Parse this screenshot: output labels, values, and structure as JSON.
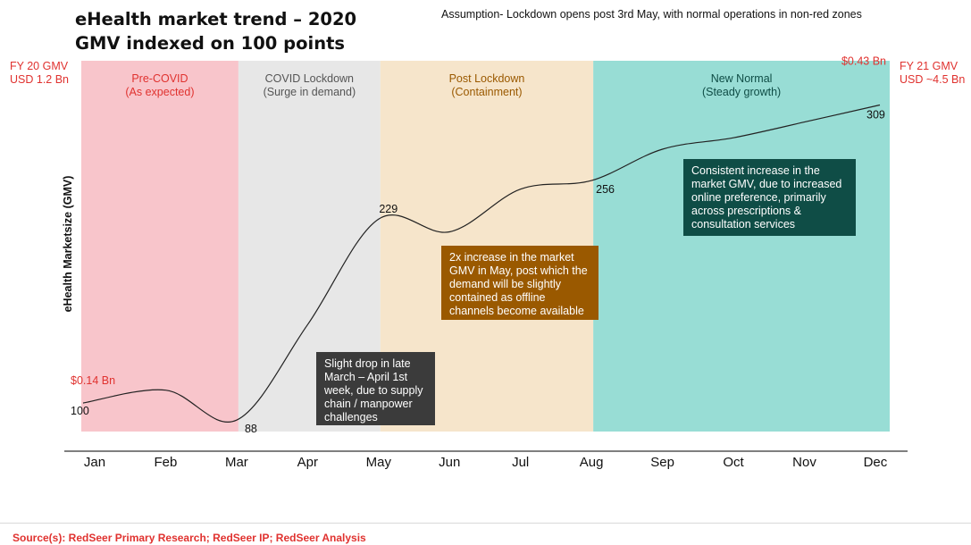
{
  "title_line1": "eHealth market trend – 2020",
  "title_line2": "GMV indexed on 100 points",
  "assumption": "Assumption- Lockdown opens post 3rd May, with normal operations in non-red zones",
  "fy20_line1": "FY 20 GMV",
  "fy20_line2": "USD 1.2 Bn",
  "fy21_line1": "FY 21 GMV",
  "fy21_line2": "USD ~4.5 Bn",
  "source": "Source(s): RedSeer Primary Research; RedSeer IP; RedSeer Analysis",
  "colors": {
    "pre_covid": "#f8c5cb",
    "lockdown": "#e7e7e7",
    "post_lockdown": "#f6e5cb",
    "new_normal": "#98ddd5",
    "red_text": "#e0322f",
    "brown_text": "#9a5900",
    "teal_text": "#0f4d46",
    "gray_text": "#555555"
  },
  "chart_data": {
    "type": "line",
    "title": "eHealth market trend – 2020",
    "subtitle": "GMV indexed on 100 points",
    "ylabel": "eHealth Marketsize (GMV)",
    "xlabel": "",
    "categories": [
      "Jan",
      "Feb",
      "Mar",
      "Apr",
      "May",
      "Jun",
      "Jul",
      "Aug",
      "Sep",
      "Oct",
      "Nov",
      "Dec"
    ],
    "ylim": [
      80,
      340
    ],
    "series": [
      {
        "values": [
          100,
          109,
          88,
          155,
          229,
          220,
          250,
          256,
          278,
          286,
          297,
          309
        ]
      }
    ],
    "point_labels": [
      {
        "category": "Jan",
        "value": 100,
        "text": "100"
      },
      {
        "category": "Mar",
        "value": 88,
        "text": "88"
      },
      {
        "category": "May",
        "value": 229,
        "text": "229"
      },
      {
        "category": "Aug",
        "value": 256,
        "text": "256"
      },
      {
        "category": "Dec",
        "value": 309,
        "text": "309"
      }
    ],
    "value_annotations": [
      {
        "category": "Jan",
        "text": "$0.14 Bn"
      },
      {
        "category": "Dec",
        "text": "$0.43 Bn"
      }
    ],
    "phases": [
      {
        "key": "pre_covid",
        "title": "Pre-COVID",
        "sub": "(As expected)",
        "start": "Jan",
        "end": "Mar"
      },
      {
        "key": "lockdown",
        "title": "COVID Lockdown",
        "sub": "(Surge in demand)",
        "start": "Mar",
        "end": "May"
      },
      {
        "key": "post_lockdown",
        "title": "Post Lockdown",
        "sub": "(Containment)",
        "start": "May",
        "end": "Aug"
      },
      {
        "key": "new_normal",
        "title": "New Normal",
        "sub": "(Steady growth)",
        "start": "Aug",
        "end": "Dec"
      }
    ],
    "notes": [
      "Slight drop in late March – April 1st week, due to supply chain / manpower challenges",
      "2x increase in the market GMV in May, post which the demand will be slightly contained as offline channels become available",
      "Consistent increase in the market GMV, due to increased online preference, primarily across prescriptions & consultation services"
    ]
  }
}
